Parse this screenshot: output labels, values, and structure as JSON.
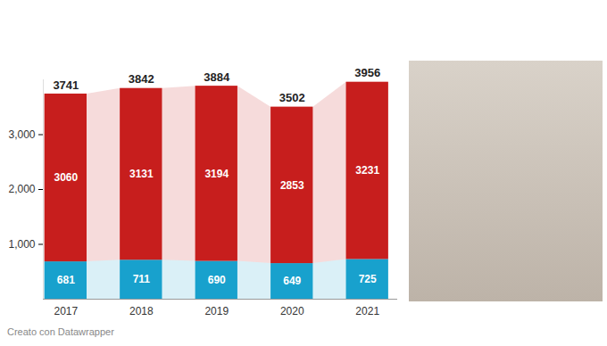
{
  "chart_data": {
    "type": "bar",
    "stacked": true,
    "data_labels": true,
    "grid": false,
    "categories": [
      "2017",
      "2018",
      "2019",
      "2020",
      "2021"
    ],
    "series": [
      {
        "color": "#18a1cd",
        "values": [
          681,
          711,
          690,
          649,
          725
        ]
      },
      {
        "color": "#c71e1d",
        "values": [
          3060,
          3131,
          3194,
          2853,
          3231
        ]
      }
    ],
    "totals": [
      3741,
      3842,
      3884,
      3502,
      3956
    ],
    "ylim": [
      0,
      4000
    ],
    "yticks": [
      1000,
      2000,
      3000
    ],
    "caption": "Creato con Datawrapper"
  }
}
